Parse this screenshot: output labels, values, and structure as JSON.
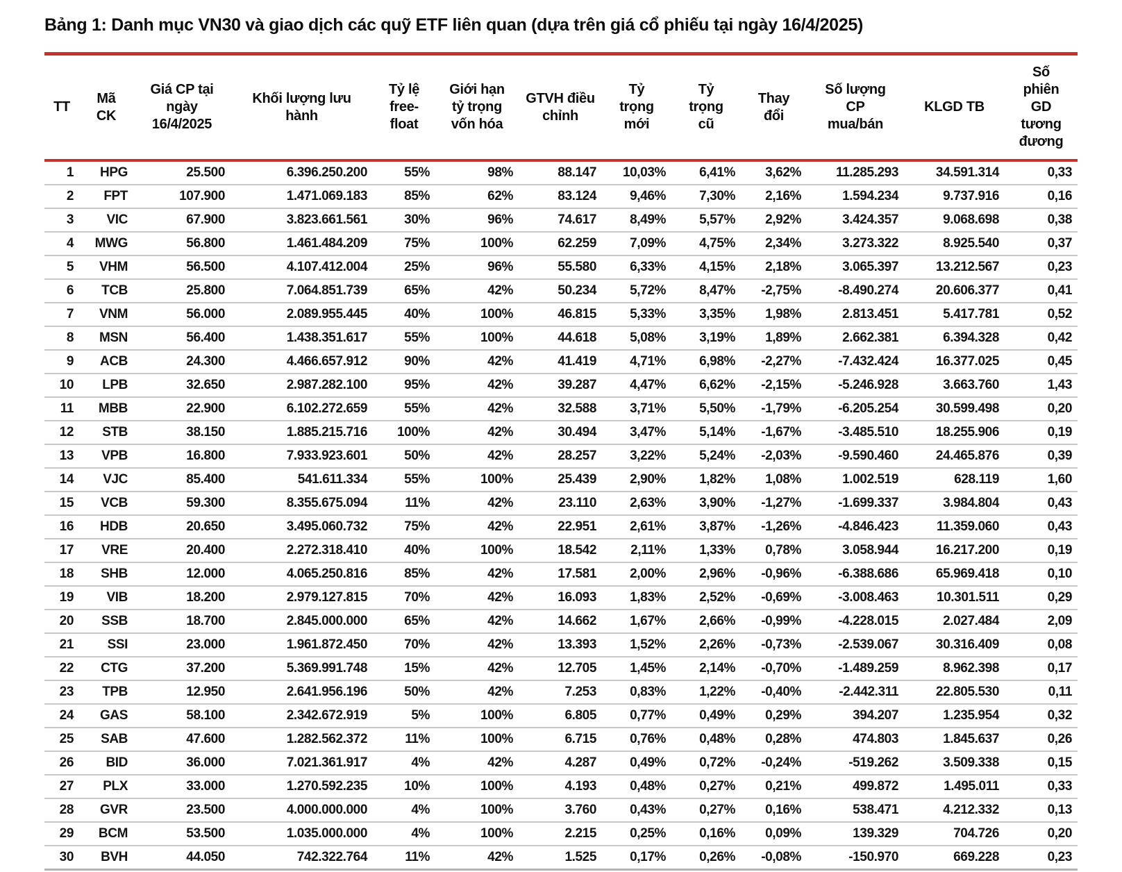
{
  "title": "Bảng 1: Danh mục VN30 và giao dịch các quỹ ETF liên quan (dựa trên giá cổ phiếu tại ngày 16/4/2025)",
  "colors": {
    "accent_line_red": "#c4332e",
    "weight_new_blue": "#2e74c9",
    "positive_green": "#3fae5a",
    "negative_red": "#e8392c",
    "row_divider_gray": "#c9c9c9"
  },
  "table": {
    "columns": [
      {
        "key": "tt",
        "label": "TT"
      },
      {
        "key": "ma_ck",
        "label": "Mã\nCK"
      },
      {
        "key": "gia",
        "label": "Giá CP tại\nngày\n16/4/2025"
      },
      {
        "key": "kllh",
        "label": "Khối lượng lưu\nhành"
      },
      {
        "key": "freefloat",
        "label": "Tỷ lệ\nfree-\nfloat"
      },
      {
        "key": "gioihan",
        "label": "Giới hạn\ntỷ trọng\nvốn hóa"
      },
      {
        "key": "gtvh",
        "label": "GTVH điều\nchỉnh"
      },
      {
        "key": "ttmoi",
        "label": "Tỷ\ntrọng\nmới"
      },
      {
        "key": "ttcu",
        "label": "Tỷ\ntrọng\ncũ"
      },
      {
        "key": "thaydoi",
        "label": "Thay\nđổi"
      },
      {
        "key": "slcp",
        "label": "Số lượng\nCP\nmua/bán"
      },
      {
        "key": "klgd",
        "label": "KLGD TB"
      },
      {
        "key": "sophien",
        "label": "Số\nphiên\nGD\ntương\nđương"
      }
    ],
    "rows": [
      {
        "cells": [
          "1",
          "HPG",
          "25.500",
          "6.396.250.200",
          "55%",
          "98%",
          "88.147",
          "10,03%",
          "6,41%",
          "3,62%",
          "11.285.293",
          "34.591.314",
          "0,33"
        ]
      },
      {
        "cells": [
          "2",
          "FPT",
          "107.900",
          "1.471.069.183",
          "85%",
          "62%",
          "83.124",
          "9,46%",
          "7,30%",
          "2,16%",
          "1.594.234",
          "9.737.916",
          "0,16"
        ]
      },
      {
        "cells": [
          "3",
          "VIC",
          "67.900",
          "3.823.661.561",
          "30%",
          "96%",
          "74.617",
          "8,49%",
          "5,57%",
          "2,92%",
          "3.424.357",
          "9.068.698",
          "0,38"
        ]
      },
      {
        "cells": [
          "4",
          "MWG",
          "56.800",
          "1.461.484.209",
          "75%",
          "100%",
          "62.259",
          "7,09%",
          "4,75%",
          "2,34%",
          "3.273.322",
          "8.925.540",
          "0,37"
        ]
      },
      {
        "cells": [
          "5",
          "VHM",
          "56.500",
          "4.107.412.004",
          "25%",
          "96%",
          "55.580",
          "6,33%",
          "4,15%",
          "2,18%",
          "3.065.397",
          "13.212.567",
          "0,23"
        ]
      },
      {
        "cells": [
          "6",
          "TCB",
          "25.800",
          "7.064.851.739",
          "65%",
          "42%",
          "50.234",
          "5,72%",
          "8,47%",
          "-2,75%",
          "-8.490.274",
          "20.606.377",
          "0,41"
        ]
      },
      {
        "cells": [
          "7",
          "VNM",
          "56.000",
          "2.089.955.445",
          "40%",
          "100%",
          "46.815",
          "5,33%",
          "3,35%",
          "1,98%",
          "2.813.451",
          "5.417.781",
          "0,52"
        ]
      },
      {
        "cells": [
          "8",
          "MSN",
          "56.400",
          "1.438.351.617",
          "55%",
          "100%",
          "44.618",
          "5,08%",
          "3,19%",
          "1,89%",
          "2.662.381",
          "6.394.328",
          "0,42"
        ]
      },
      {
        "cells": [
          "9",
          "ACB",
          "24.300",
          "4.466.657.912",
          "90%",
          "42%",
          "41.419",
          "4,71%",
          "6,98%",
          "-2,27%",
          "-7.432.424",
          "16.377.025",
          "0,45"
        ]
      },
      {
        "cells": [
          "10",
          "LPB",
          "32.650",
          "2.987.282.100",
          "95%",
          "42%",
          "39.287",
          "4,47%",
          "6,62%",
          "-2,15%",
          "-5.246.928",
          "3.663.760",
          "1,43"
        ]
      },
      {
        "cells": [
          "11",
          "MBB",
          "22.900",
          "6.102.272.659",
          "55%",
          "42%",
          "32.588",
          "3,71%",
          "5,50%",
          "-1,79%",
          "-6.205.254",
          "30.599.498",
          "0,20"
        ]
      },
      {
        "cells": [
          "12",
          "STB",
          "38.150",
          "1.885.215.716",
          "100%",
          "42%",
          "30.494",
          "3,47%",
          "5,14%",
          "-1,67%",
          "-3.485.510",
          "18.255.906",
          "0,19"
        ]
      },
      {
        "cells": [
          "13",
          "VPB",
          "16.800",
          "7.933.923.601",
          "50%",
          "42%",
          "28.257",
          "3,22%",
          "5,24%",
          "-2,03%",
          "-9.590.460",
          "24.465.876",
          "0,39"
        ]
      },
      {
        "cells": [
          "14",
          "VJC",
          "85.400",
          "541.611.334",
          "55%",
          "100%",
          "25.439",
          "2,90%",
          "1,82%",
          "1,08%",
          "1.002.519",
          "628.119",
          "1,60"
        ]
      },
      {
        "cells": [
          "15",
          "VCB",
          "59.300",
          "8.355.675.094",
          "11%",
          "42%",
          "23.110",
          "2,63%",
          "3,90%",
          "-1,27%",
          "-1.699.337",
          "3.984.804",
          "0,43"
        ]
      },
      {
        "cells": [
          "16",
          "HDB",
          "20.650",
          "3.495.060.732",
          "75%",
          "42%",
          "22.951",
          "2,61%",
          "3,87%",
          "-1,26%",
          "-4.846.423",
          "11.359.060",
          "0,43"
        ]
      },
      {
        "cells": [
          "17",
          "VRE",
          "20.400",
          "2.272.318.410",
          "40%",
          "100%",
          "18.542",
          "2,11%",
          "1,33%",
          "0,78%",
          "3.058.944",
          "16.217.200",
          "0,19"
        ]
      },
      {
        "cells": [
          "18",
          "SHB",
          "12.000",
          "4.065.250.816",
          "85%",
          "42%",
          "17.581",
          "2,00%",
          "2,96%",
          "-0,96%",
          "-6.388.686",
          "65.969.418",
          "0,10"
        ]
      },
      {
        "cells": [
          "19",
          "VIB",
          "18.200",
          "2.979.127.815",
          "70%",
          "42%",
          "16.093",
          "1,83%",
          "2,52%",
          "-0,69%",
          "-3.008.463",
          "10.301.511",
          "0,29"
        ]
      },
      {
        "cells": [
          "20",
          "SSB",
          "18.700",
          "2.845.000.000",
          "65%",
          "42%",
          "14.662",
          "1,67%",
          "2,66%",
          "-0,99%",
          "-4.228.015",
          "2.027.484",
          "2,09"
        ]
      },
      {
        "cells": [
          "21",
          "SSI",
          "23.000",
          "1.961.872.450",
          "70%",
          "42%",
          "13.393",
          "1,52%",
          "2,26%",
          "-0,73%",
          "-2.539.067",
          "30.316.409",
          "0,08"
        ]
      },
      {
        "cells": [
          "22",
          "CTG",
          "37.200",
          "5.369.991.748",
          "15%",
          "42%",
          "12.705",
          "1,45%",
          "2,14%",
          "-0,70%",
          "-1.489.259",
          "8.962.398",
          "0,17"
        ]
      },
      {
        "cells": [
          "23",
          "TPB",
          "12.950",
          "2.641.956.196",
          "50%",
          "42%",
          "7.253",
          "0,83%",
          "1,22%",
          "-0,40%",
          "-2.442.311",
          "22.805.530",
          "0,11"
        ]
      },
      {
        "cells": [
          "24",
          "GAS",
          "58.100",
          "2.342.672.919",
          "5%",
          "100%",
          "6.805",
          "0,77%",
          "0,49%",
          "0,29%",
          "394.207",
          "1.235.954",
          "0,32"
        ]
      },
      {
        "cells": [
          "25",
          "SAB",
          "47.600",
          "1.282.562.372",
          "11%",
          "100%",
          "6.715",
          "0,76%",
          "0,48%",
          "0,28%",
          "474.803",
          "1.845.637",
          "0,26"
        ]
      },
      {
        "cells": [
          "26",
          "BID",
          "36.000",
          "7.021.361.917",
          "4%",
          "42%",
          "4.287",
          "0,49%",
          "0,72%",
          "-0,24%",
          "-519.262",
          "3.509.338",
          "0,15"
        ]
      },
      {
        "cells": [
          "27",
          "PLX",
          "33.000",
          "1.270.592.235",
          "10%",
          "100%",
          "4.193",
          "0,48%",
          "0,27%",
          "0,21%",
          "499.872",
          "1.495.011",
          "0,33"
        ]
      },
      {
        "cells": [
          "28",
          "GVR",
          "23.500",
          "4.000.000.000",
          "4%",
          "100%",
          "3.760",
          "0,43%",
          "0,27%",
          "0,16%",
          "538.471",
          "4.212.332",
          "0,13"
        ]
      },
      {
        "cells": [
          "29",
          "BCM",
          "53.500",
          "1.035.000.000",
          "4%",
          "100%",
          "2.215",
          "0,25%",
          "0,16%",
          "0,09%",
          "139.329",
          "704.726",
          "0,20"
        ]
      },
      {
        "cells": [
          "30",
          "BVH",
          "44.050",
          "742.322.764",
          "11%",
          "42%",
          "1.525",
          "0,17%",
          "0,26%",
          "-0,08%",
          "-150.970",
          "669.228",
          "0,23"
        ]
      }
    ]
  }
}
